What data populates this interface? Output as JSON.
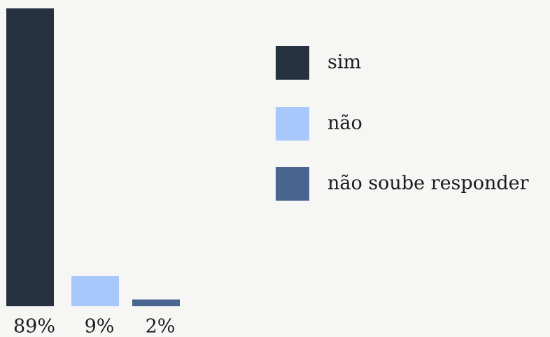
{
  "chart_data": {
    "type": "bar",
    "categories": [
      "sim",
      "não",
      "não soube responder"
    ],
    "values": [
      89,
      9,
      2
    ],
    "value_labels": [
      "89%",
      "9%",
      "2%"
    ],
    "colors": [
      "#263140",
      "#a8c8fb",
      "#48648f"
    ]
  }
}
